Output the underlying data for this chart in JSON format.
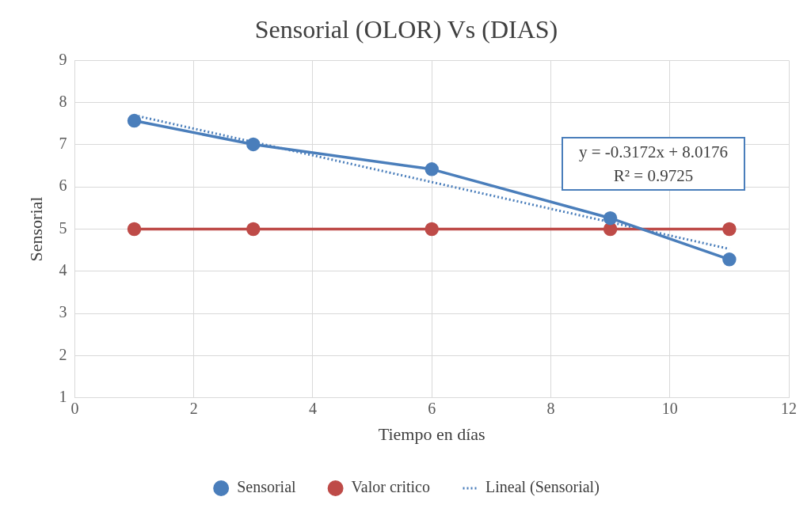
{
  "chart_data": {
    "type": "line",
    "title": "Sensorial (OLOR) Vs (DIAS)",
    "xlabel": "Tiempo en días",
    "ylabel": "Sensorial",
    "x": [
      1,
      3,
      6,
      9,
      11
    ],
    "series": [
      {
        "name": "Sensorial",
        "color": "#4a7ebb",
        "values": [
          7.57,
          7.01,
          6.42,
          5.26,
          4.28
        ]
      },
      {
        "name": "Valor critico",
        "color": "#be4b48",
        "values": [
          5,
          5,
          5,
          5,
          5
        ]
      },
      {
        "name": "Lineal (Sensorial)",
        "color": "#4a7ebb",
        "x": [
          1,
          11
        ],
        "values": [
          7.7,
          4.53
        ],
        "marker": "none",
        "line_style": "dotted"
      }
    ],
    "xlim": [
      0,
      12
    ],
    "xticks": [
      0,
      2,
      4,
      6,
      8,
      10,
      12
    ],
    "ylim": [
      1,
      9
    ],
    "yticks": [
      1,
      2,
      3,
      4,
      5,
      6,
      7,
      8,
      9
    ],
    "grid": true,
    "legend": "bottom",
    "marker": "circle",
    "line_style": "solid",
    "annotations": [
      "y = -0.3172x + 8.0176",
      "R² = 0.9725"
    ]
  }
}
